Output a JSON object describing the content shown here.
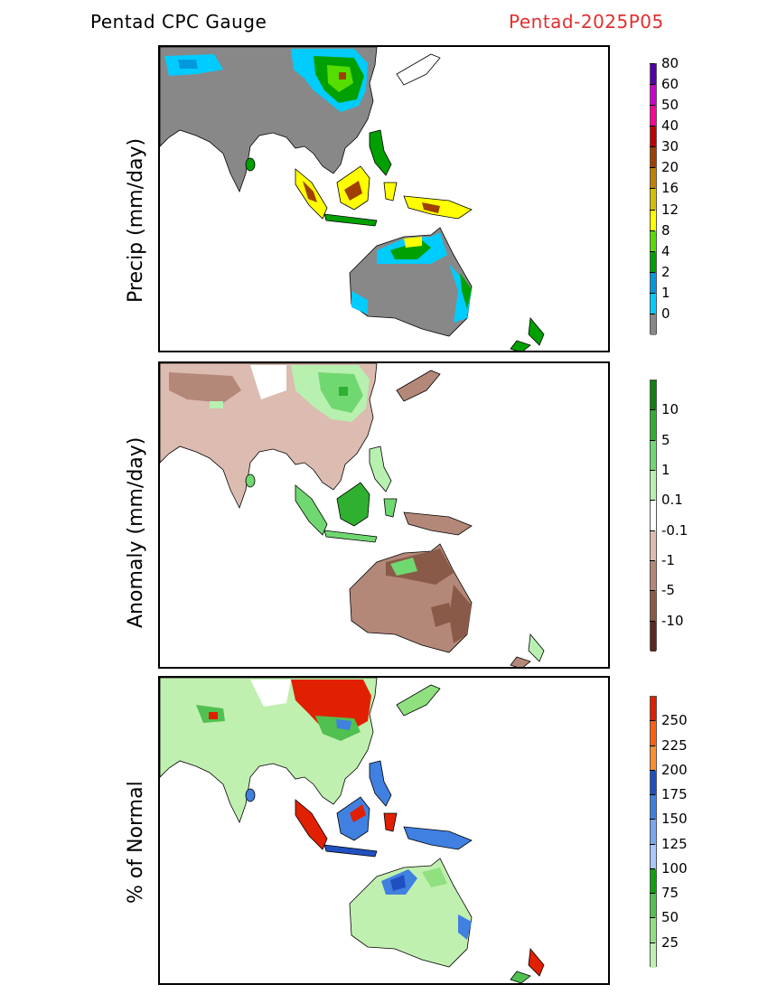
{
  "header": {
    "left_title": "Pentad CPC Gauge",
    "right_title": "Pentad-2025P05"
  },
  "panels": [
    {
      "id": "precip",
      "ylabel": "Precip (mm/day)",
      "colorbar": {
        "colors": [
          "#888888",
          "#00ccff",
          "#0099dd",
          "#00a000",
          "#55dd00",
          "#ffff00",
          "#d4c000",
          "#c08000",
          "#a04000",
          "#c00000",
          "#ff0099",
          "#cc00cc",
          "#5500aa"
        ],
        "labels": [
          "0",
          "1",
          "2",
          "4",
          "8",
          "12",
          "16",
          "20",
          "30",
          "40",
          "50",
          "60",
          "80"
        ]
      }
    },
    {
      "id": "anomaly",
      "ylabel": "Anomaly (mm/day)",
      "colorbar": {
        "colors": [
          "#5a2a20",
          "#8a5a48",
          "#b48878",
          "#dcbcb0",
          "#ffffff",
          "#b8f0b0",
          "#70d870",
          "#30b030",
          "#108010"
        ],
        "labels": [
          "-10",
          "-5",
          "-1",
          "-0.1",
          "0.1",
          "1",
          "5",
          "10"
        ]
      }
    },
    {
      "id": "percent",
      "ylabel": "% of Normal",
      "colorbar": {
        "colors": [
          "#c0f0b0",
          "#90e080",
          "#50c050",
          "#10a010",
          "#a8c8ff",
          "#78a8f0",
          "#4080e0",
          "#2050c0",
          "#ff9030",
          "#ff6010",
          "#e02000"
        ],
        "labels": [
          "25",
          "50",
          "75",
          "100",
          "125",
          "150",
          "175",
          "200",
          "225",
          "250"
        ]
      }
    }
  ]
}
